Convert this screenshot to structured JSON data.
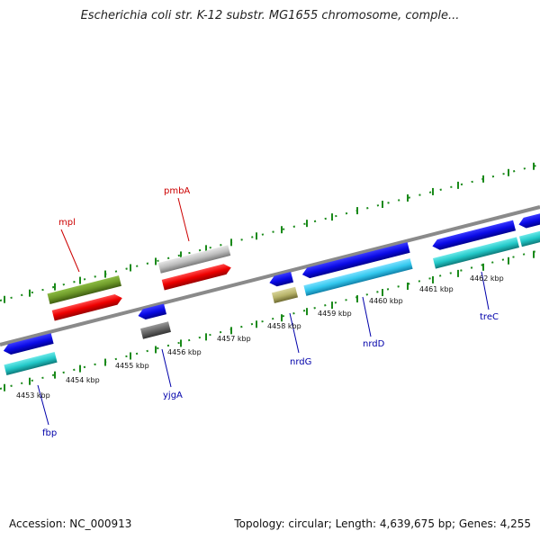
{
  "header": {
    "title": "Escherichia coli str. K-12 substr. MG1655 chromosome, comple..."
  },
  "footer": {
    "accession": "Accession: NC_000913",
    "topology": "Topology: circular; Length: 4,639,675 bp; Genes: 4,255"
  },
  "colors": {
    "backbone": "#8a8a8a",
    "tick": "#1a8a1a",
    "forward_label": "#cc0000",
    "reverse_label": "#0000aa",
    "gene_blue": "#0a0ae6",
    "cds_red": "#ee0000",
    "cds_cyan": "#22c8c8",
    "mrna_light": "#33c8ee",
    "olive": "#6e9a2a",
    "grey": "#bdbdbd",
    "dark_grey": "#666666",
    "khaki": "#b7b36a"
  },
  "scale": {
    "labels": [
      "4453 kbp",
      "4454 kbp",
      "4455 kbp",
      "4456 kbp",
      "4457 kbp",
      "4458 kbp",
      "4459 kbp",
      "4460 kbp",
      "4461 kbp",
      "4462 kbp"
    ]
  },
  "genes": {
    "mpl": "mpl",
    "pmbA": "pmbA",
    "fbp": "fbp",
    "yjgA": "yjgA",
    "nrdG": "nrdG",
    "nrdD": "nrdD",
    "treC": "treC"
  }
}
